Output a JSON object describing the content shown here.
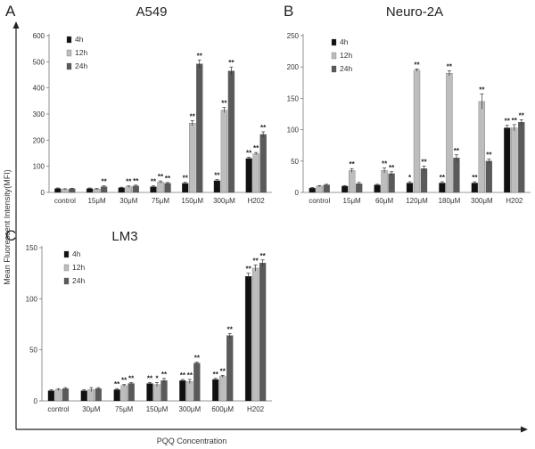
{
  "figure": {
    "ylabel": "Mean Fluorescent Intensity(MFI)",
    "xlabel": "PQQ Concentration",
    "colors": {
      "4h": "#111111",
      "12h": "#bdbdbd",
      "24h": "#5a5a5a"
    }
  },
  "chart_data": [
    {
      "type": "bar",
      "panel": "A",
      "title": "A549",
      "categories": [
        "control",
        "15μM",
        "30μM",
        "75μM",
        "150μM",
        "300μM",
        "H202"
      ],
      "ylim": [
        0,
        600
      ],
      "yticks": [
        0,
        100,
        200,
        300,
        400,
        500,
        600
      ],
      "series": [
        {
          "name": "4h",
          "values": [
            15,
            15,
            18,
            22,
            35,
            45,
            130
          ],
          "errors": [
            2,
            2,
            2,
            3,
            4,
            4,
            5
          ],
          "sig": [
            "",
            "",
            "",
            "**",
            "**",
            "**",
            "**"
          ]
        },
        {
          "name": "12h",
          "values": [
            12,
            13,
            22,
            40,
            265,
            315,
            148
          ],
          "errors": [
            2,
            2,
            3,
            4,
            10,
            10,
            5
          ],
          "sig": [
            "",
            "",
            "**",
            "**",
            "**",
            "**",
            "**"
          ]
        },
        {
          "name": "24h",
          "values": [
            14,
            22,
            25,
            35,
            492,
            465,
            222
          ],
          "errors": [
            2,
            3,
            3,
            3,
            15,
            15,
            10
          ],
          "sig": [
            "",
            "**",
            "**",
            "**",
            "**",
            "**",
            "**"
          ]
        }
      ]
    },
    {
      "type": "bar",
      "panel": "B",
      "title": "Neuro-2A",
      "categories": [
        "control",
        "15μM",
        "60μM",
        "120μM",
        "180μM",
        "300μM",
        "H202"
      ],
      "ylim": [
        0,
        250
      ],
      "yticks": [
        0,
        50,
        100,
        150,
        200,
        250
      ],
      "series": [
        {
          "name": "4h",
          "values": [
            7,
            10,
            12,
            15,
            15,
            15,
            103
          ],
          "errors": [
            1,
            1,
            1,
            2,
            2,
            2,
            4
          ],
          "sig": [
            "",
            "",
            "",
            "*",
            "**",
            "**",
            "**"
          ]
        },
        {
          "name": "12h",
          "values": [
            10,
            35,
            35,
            195,
            190,
            145,
            103
          ],
          "errors": [
            1,
            3,
            4,
            2,
            4,
            12,
            5
          ],
          "sig": [
            "",
            "**",
            "**",
            "**",
            "**",
            "**",
            "**"
          ]
        },
        {
          "name": "24h",
          "values": [
            12,
            14,
            30,
            38,
            55,
            50,
            112
          ],
          "errors": [
            1,
            2,
            3,
            4,
            5,
            3,
            4
          ],
          "sig": [
            "",
            "",
            "**",
            "**",
            "**",
            "**",
            "**"
          ]
        }
      ]
    },
    {
      "type": "bar",
      "panel": "C",
      "title": "LM3",
      "categories": [
        "control",
        "30μM",
        "75μM",
        "150μM",
        "300μM",
        "600μM",
        "H202"
      ],
      "ylim": [
        0,
        150
      ],
      "yticks": [
        0,
        50,
        100,
        150
      ],
      "series": [
        {
          "name": "4h",
          "values": [
            10,
            10,
            11,
            17,
            20,
            21,
            122
          ],
          "errors": [
            1,
            1,
            1,
            1,
            1,
            1,
            3
          ],
          "sig": [
            "",
            "",
            "**",
            "**",
            "**",
            "**",
            "**"
          ]
        },
        {
          "name": "12h",
          "values": [
            11,
            11,
            15,
            16,
            19,
            24,
            130
          ],
          "errors": [
            1,
            2,
            1,
            2,
            2,
            1,
            3
          ],
          "sig": [
            "",
            "",
            "**",
            "*",
            "**",
            "**",
            "**"
          ]
        },
        {
          "name": "24h",
          "values": [
            12,
            12,
            17,
            20,
            37,
            64,
            135
          ],
          "errors": [
            1,
            1,
            1,
            2,
            1,
            2,
            3
          ],
          "sig": [
            "",
            "",
            "**",
            "**",
            "**",
            "**",
            "**"
          ]
        }
      ]
    }
  ]
}
